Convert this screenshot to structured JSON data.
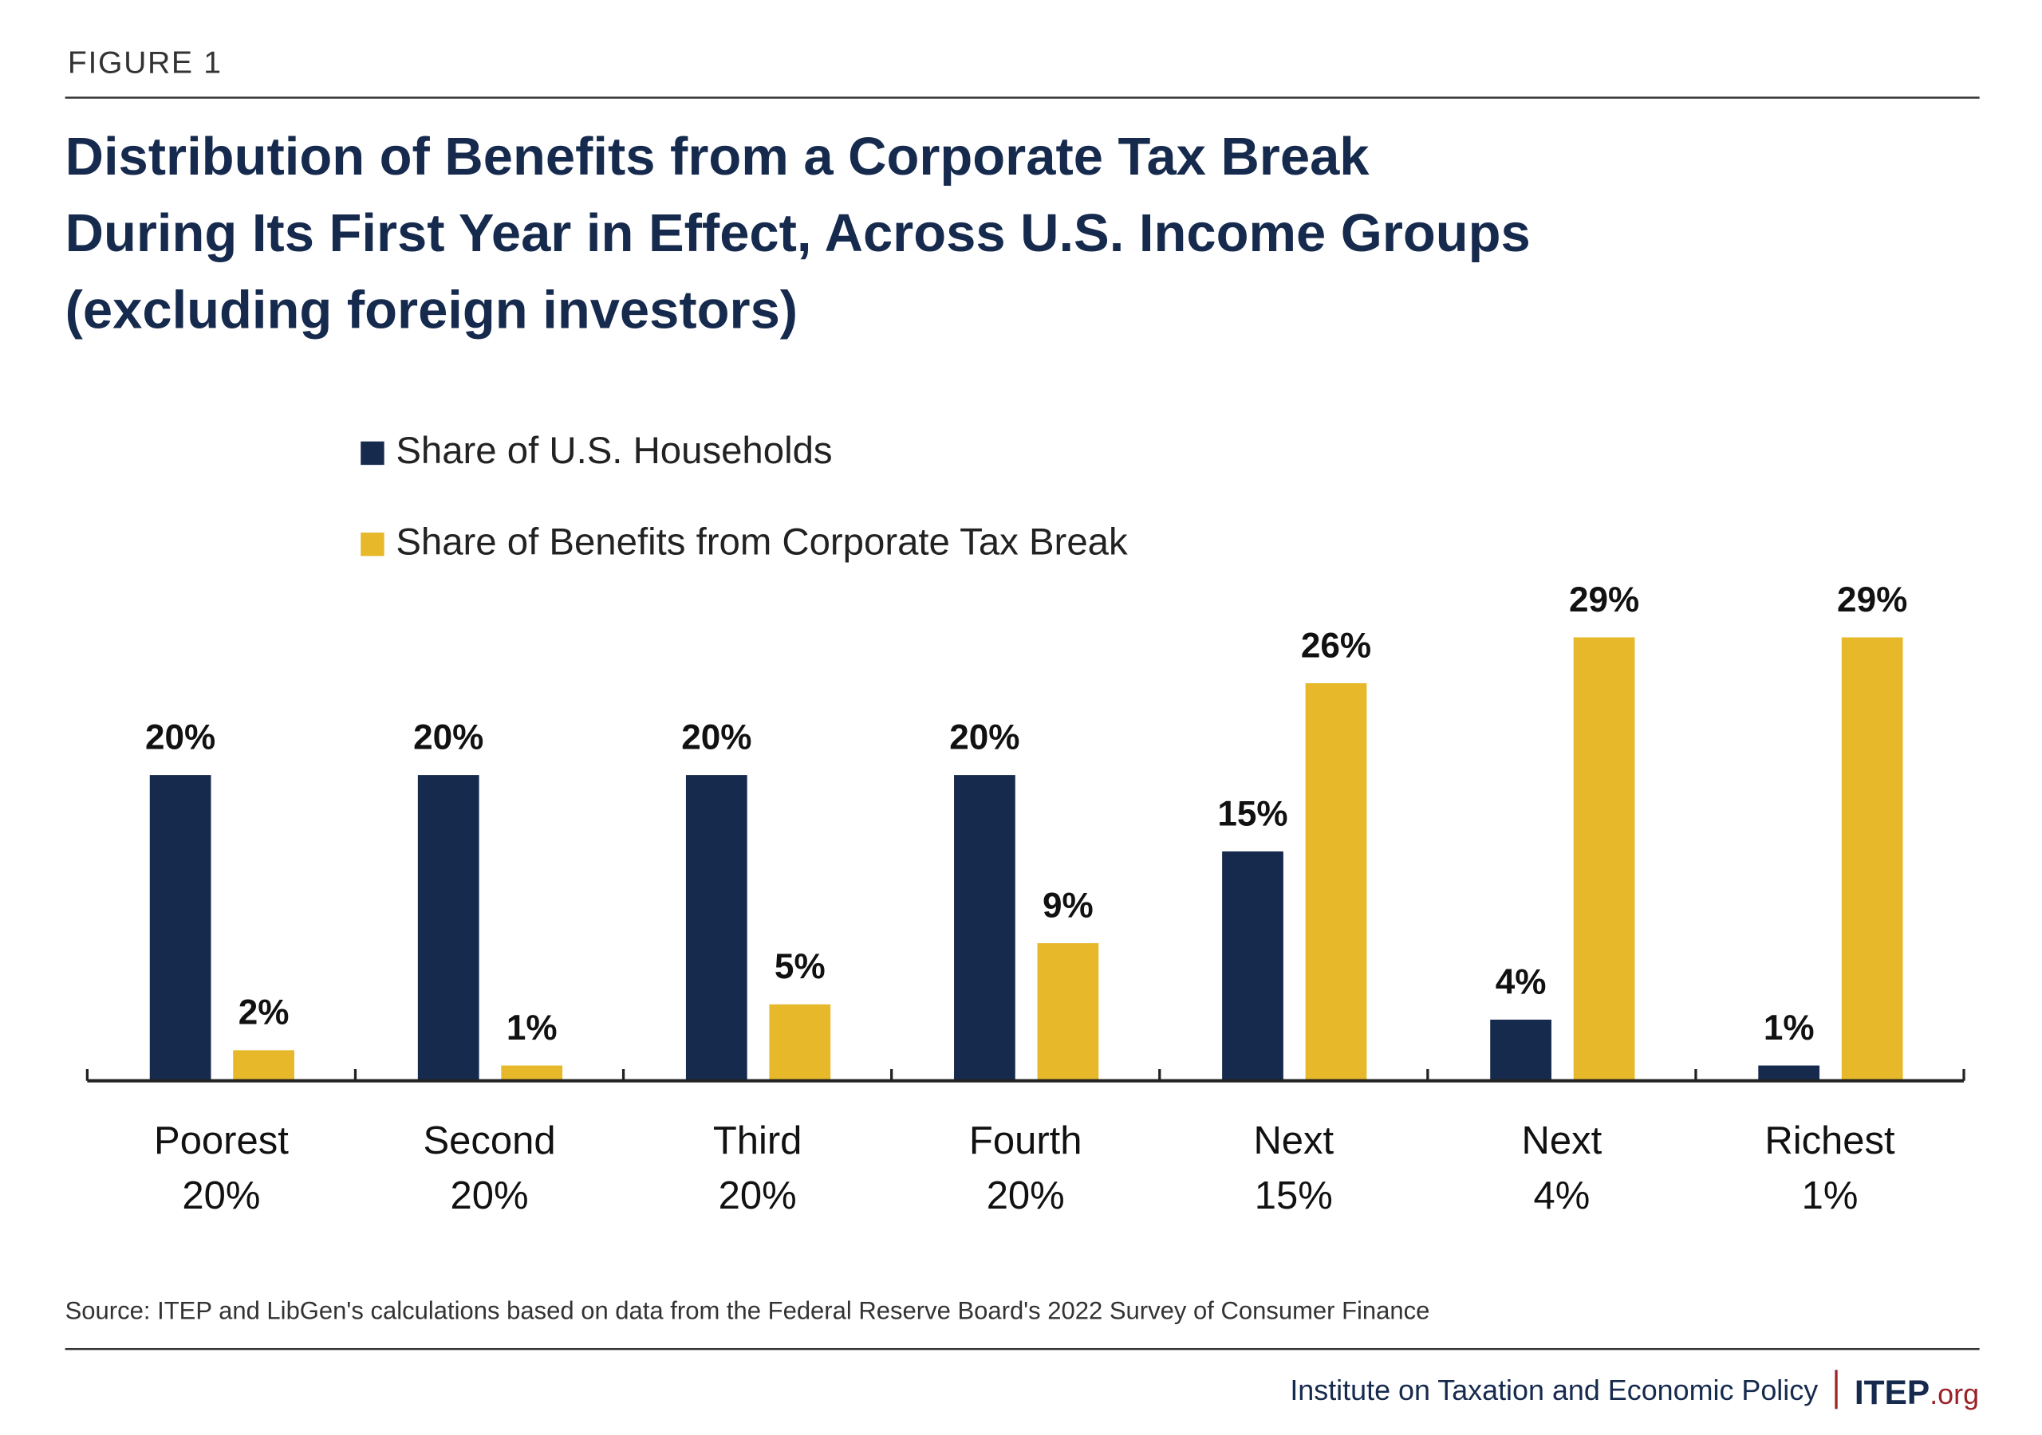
{
  "header": {
    "figure": "FIGURE 1",
    "title_lines": [
      "Distribution of Benefits from a Corporate Tax Break",
      "During Its First Year in Effect, Across U.S. Income Groups",
      "(excluding foreign investors)"
    ]
  },
  "chart_data": {
    "type": "bar",
    "categories": [
      [
        "Poorest",
        "20%"
      ],
      [
        "Second",
        "20%"
      ],
      [
        "Third",
        "20%"
      ],
      [
        "Fourth",
        "20%"
      ],
      [
        "Next",
        "15%"
      ],
      [
        "Next",
        "4%"
      ],
      [
        "Richest",
        "1%"
      ]
    ],
    "series": [
      {
        "name": "Share of U.S. Households",
        "color": "#162a4e",
        "values": [
          20,
          20,
          20,
          20,
          15,
          4,
          1
        ],
        "value_labels": [
          "20%",
          "20%",
          "20%",
          "20%",
          "15%",
          "4%",
          "1%"
        ]
      },
      {
        "name": "Share of Benefits from Corporate Tax Break",
        "color": "#e6b82a",
        "values": [
          2,
          1,
          5,
          9,
          26,
          29,
          29
        ],
        "value_labels": [
          "2%",
          "1%",
          "5%",
          "9%",
          "26%",
          "29%",
          "29%"
        ]
      }
    ],
    "ylim": [
      0,
      35
    ]
  },
  "footer": {
    "source": "Source: ITEP and LibGen's calculations based on data from the Federal Reserve Board's 2022 Survey of Consumer Finance",
    "org": "Institute on Taxation and Economic Policy",
    "brand": "ITEP",
    "brand_suffix": ".org"
  }
}
